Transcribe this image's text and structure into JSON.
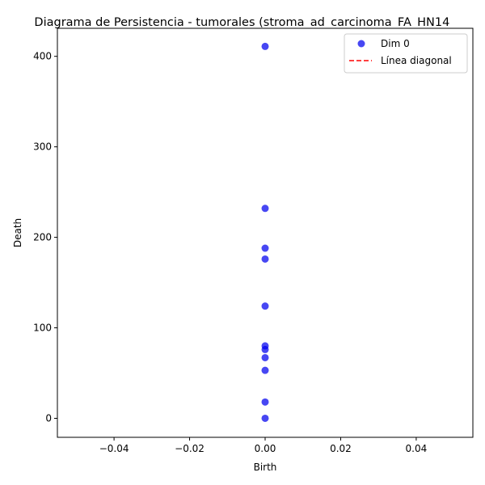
{
  "chart_data": {
    "type": "scatter",
    "title": "Diagrama de Persistencia - tumorales (stroma_ad_carcinoma_FA_HN14_",
    "xlabel": "Birth",
    "ylabel": "Death",
    "xlim": [
      -0.055,
      0.055
    ],
    "ylim": [
      -21,
      431
    ],
    "xticks": [
      -0.04,
      -0.02,
      0.0,
      0.02,
      0.04
    ],
    "xtick_labels": [
      "−0.04",
      "−0.02",
      "0.00",
      "0.02",
      "0.04"
    ],
    "yticks": [
      0,
      100,
      200,
      300,
      400
    ],
    "ytick_labels": [
      "0",
      "100",
      "200",
      "300",
      "400"
    ],
    "grid": false,
    "legend_position": "top-right",
    "series": [
      {
        "name": "Dim 0",
        "kind": "points",
        "color": "#0000ee",
        "x": [
          0,
          0,
          0,
          0,
          0,
          0,
          0,
          0,
          0,
          0,
          0
        ],
        "y": [
          411,
          232,
          188,
          176,
          124,
          80,
          76,
          67,
          53,
          18,
          0
        ]
      },
      {
        "name": "Línea diagonal",
        "kind": "dashed-line",
        "color": "#ff0000",
        "x": [
          0,
          0
        ],
        "y": [
          0,
          0
        ]
      }
    ]
  }
}
